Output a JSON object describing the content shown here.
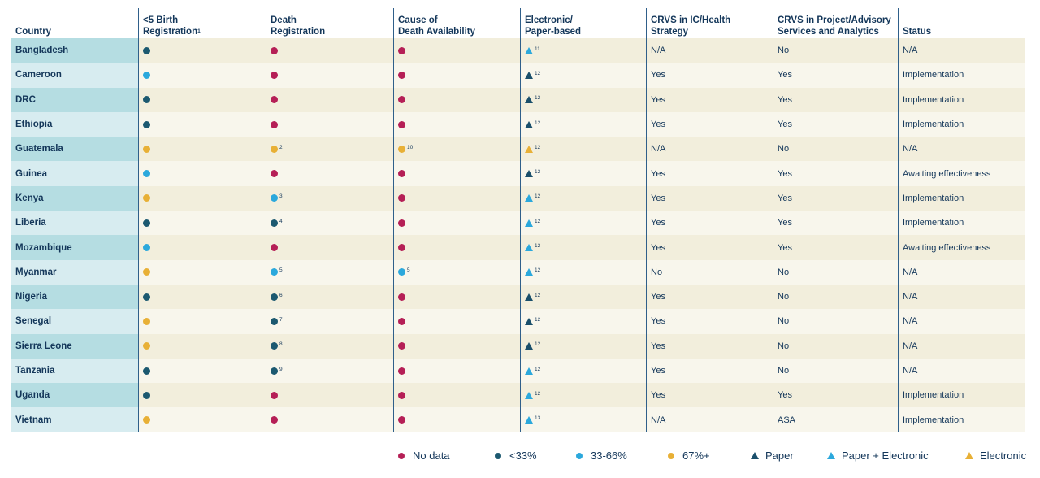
{
  "colors": {
    "no_data": "#b51f56",
    "lt33": "#1c5970",
    "mid": "#2ba8dc",
    "high": "#e8b036",
    "paper": "#1a4f6b",
    "paper_electronic": "#2ba8dc",
    "electronic": "#e8b036"
  },
  "headers": [
    {
      "line1": "",
      "line2": "Country",
      "sup": ""
    },
    {
      "line1": "<5 Birth",
      "line2": "Registration",
      "sup": "1"
    },
    {
      "line1": "Death",
      "line2": "Registration",
      "sup": ""
    },
    {
      "line1": "Cause of",
      "line2": "Death Availability",
      "sup": ""
    },
    {
      "line1": "Electronic/",
      "line2": "Paper-based",
      "sup": ""
    },
    {
      "line1": "CRVS in IC/Health",
      "line2": "Strategy",
      "sup": ""
    },
    {
      "line1": "CRVS in Project/Advisory",
      "line2": "Services and Analytics",
      "sup": ""
    },
    {
      "line1": "",
      "line2": "Status",
      "sup": ""
    }
  ],
  "rows": [
    {
      "country": "Bangladesh",
      "birth": "lt33",
      "birth_sup": "",
      "death": "no_data",
      "death_sup": "",
      "cause": "no_data",
      "cause_sup": "",
      "format": "paper_electronic",
      "format_sup": "11",
      "strategy": "N/A",
      "project": "No",
      "status": "N/A"
    },
    {
      "country": "Cameroon",
      "birth": "mid",
      "birth_sup": "",
      "death": "no_data",
      "death_sup": "",
      "cause": "no_data",
      "cause_sup": "",
      "format": "paper",
      "format_sup": "12",
      "strategy": "Yes",
      "project": "Yes",
      "status": "Implementation"
    },
    {
      "country": "DRC",
      "birth": "lt33",
      "birth_sup": "",
      "death": "no_data",
      "death_sup": "",
      "cause": "no_data",
      "cause_sup": "",
      "format": "paper",
      "format_sup": "12",
      "strategy": "Yes",
      "project": "Yes",
      "status": "Implementation"
    },
    {
      "country": "Ethiopia",
      "birth": "lt33",
      "birth_sup": "",
      "death": "no_data",
      "death_sup": "",
      "cause": "no_data",
      "cause_sup": "",
      "format": "paper",
      "format_sup": "12",
      "strategy": "Yes",
      "project": "Yes",
      "status": "Implementation"
    },
    {
      "country": "Guatemala",
      "birth": "high",
      "birth_sup": "",
      "death": "high",
      "death_sup": "2",
      "cause": "high",
      "cause_sup": "10",
      "format": "electronic",
      "format_sup": "12",
      "strategy": "N/A",
      "project": "No",
      "status": "N/A"
    },
    {
      "country": "Guinea",
      "birth": "mid",
      "birth_sup": "",
      "death": "no_data",
      "death_sup": "",
      "cause": "no_data",
      "cause_sup": "",
      "format": "paper",
      "format_sup": "12",
      "strategy": "Yes",
      "project": "Yes",
      "status": "Awaiting effectiveness"
    },
    {
      "country": "Kenya",
      "birth": "high",
      "birth_sup": "",
      "death": "mid",
      "death_sup": "3",
      "cause": "no_data",
      "cause_sup": "",
      "format": "paper_electronic",
      "format_sup": "12",
      "strategy": "Yes",
      "project": "Yes",
      "status": "Implementation"
    },
    {
      "country": "Liberia",
      "birth": "lt33",
      "birth_sup": "",
      "death": "lt33",
      "death_sup": "4",
      "cause": "no_data",
      "cause_sup": "",
      "format": "paper_electronic",
      "format_sup": "12",
      "strategy": "Yes",
      "project": "Yes",
      "status": "Implementation"
    },
    {
      "country": "Mozambique",
      "birth": "mid",
      "birth_sup": "",
      "death": "no_data",
      "death_sup": "",
      "cause": "no_data",
      "cause_sup": "",
      "format": "paper_electronic",
      "format_sup": "12",
      "strategy": "Yes",
      "project": "Yes",
      "status": "Awaiting effectiveness"
    },
    {
      "country": "Myanmar",
      "birth": "high",
      "birth_sup": "",
      "death": "mid",
      "death_sup": "5",
      "cause": "mid",
      "cause_sup": "5",
      "format": "paper_electronic",
      "format_sup": "12",
      "strategy": "No",
      "project": "No",
      "status": "N/A"
    },
    {
      "country": "Nigeria",
      "birth": "lt33",
      "birth_sup": "",
      "death": "lt33",
      "death_sup": "6",
      "cause": "no_data",
      "cause_sup": "",
      "format": "paper",
      "format_sup": "12",
      "strategy": "Yes",
      "project": "No",
      "status": "N/A"
    },
    {
      "country": "Senegal",
      "birth": "high",
      "birth_sup": "",
      "death": "lt33",
      "death_sup": "7",
      "cause": "no_data",
      "cause_sup": "",
      "format": "paper",
      "format_sup": "12",
      "strategy": "Yes",
      "project": "No",
      "status": "N/A"
    },
    {
      "country": "Sierra Leone",
      "birth": "high",
      "birth_sup": "",
      "death": "lt33",
      "death_sup": "8",
      "cause": "no_data",
      "cause_sup": "",
      "format": "paper",
      "format_sup": "12",
      "strategy": "Yes",
      "project": "No",
      "status": "N/A"
    },
    {
      "country": "Tanzania",
      "birth": "lt33",
      "birth_sup": "",
      "death": "lt33",
      "death_sup": "9",
      "cause": "no_data",
      "cause_sup": "",
      "format": "paper_electronic",
      "format_sup": "12",
      "strategy": "Yes",
      "project": "No",
      "status": "N/A"
    },
    {
      "country": "Uganda",
      "birth": "lt33",
      "birth_sup": "",
      "death": "no_data",
      "death_sup": "",
      "cause": "no_data",
      "cause_sup": "",
      "format": "paper_electronic",
      "format_sup": "12",
      "strategy": "Yes",
      "project": "Yes",
      "status": "Implementation"
    },
    {
      "country": "Vietnam",
      "birth": "high",
      "birth_sup": "",
      "death": "no_data",
      "death_sup": "",
      "cause": "no_data",
      "cause_sup": "",
      "format": "paper_electronic",
      "format_sup": "13",
      "strategy": "N/A",
      "project": "ASA",
      "status": "Implementation"
    }
  ],
  "legend": [
    {
      "kind": "dot",
      "color_key": "no_data",
      "label": "No data"
    },
    {
      "kind": "dot",
      "color_key": "lt33",
      "label": "<33%"
    },
    {
      "kind": "dot",
      "color_key": "mid",
      "label": "33-66%"
    },
    {
      "kind": "dot",
      "color_key": "high",
      "label": "67%+"
    },
    {
      "kind": "tri",
      "color_key": "paper",
      "label": "Paper"
    },
    {
      "kind": "tri",
      "color_key": "paper_electronic",
      "label": "Paper + Electronic"
    },
    {
      "kind": "tri",
      "color_key": "electronic",
      "label": "Electronic"
    }
  ]
}
